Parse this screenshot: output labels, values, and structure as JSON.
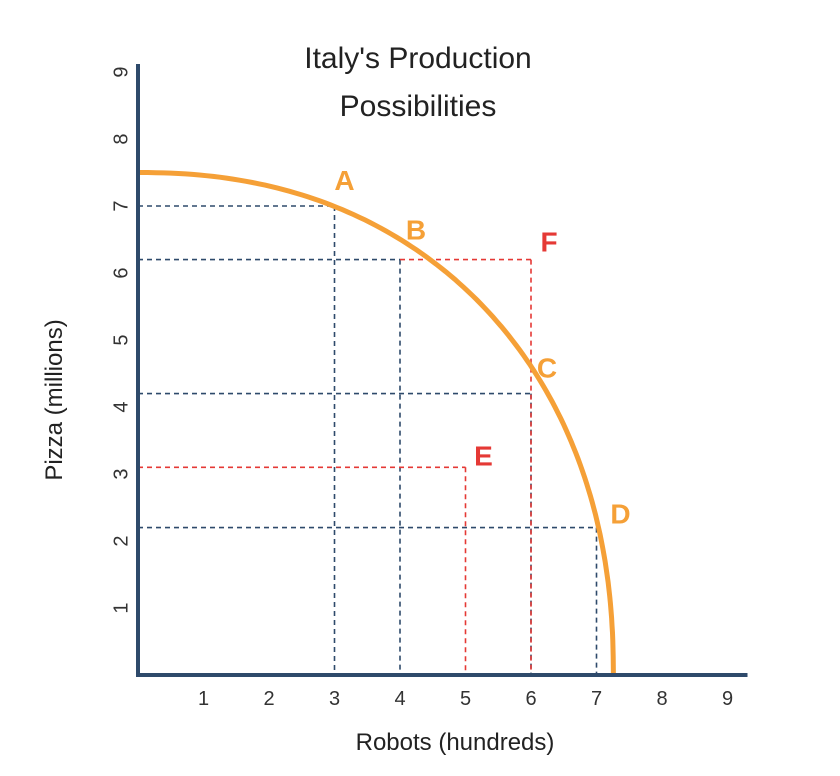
{
  "chart_data": {
    "type": "line",
    "title": [
      "Italy's Production",
      "Possibilities"
    ],
    "xlabel": "Robots (hundreds)",
    "ylabel": "Pizza (millions)",
    "xlim": [
      0,
      9
    ],
    "ylim": [
      0,
      9
    ],
    "xticks": [
      "1",
      "2",
      "3",
      "4",
      "5",
      "6",
      "7",
      "8",
      "9"
    ],
    "yticks": [
      "1",
      "2",
      "3",
      "4",
      "5",
      "6",
      "7",
      "8",
      "9"
    ],
    "ppf_curve": {
      "name": "Production possibilities frontier",
      "intercept_y": 7.5,
      "intercept_x": 7.25,
      "color": "#F5A037"
    },
    "points": [
      {
        "label": "A",
        "x": 3,
        "y": 7.0,
        "on_frontier": true,
        "color": "#F5A037"
      },
      {
        "label": "B",
        "x": 4,
        "y": 6.2,
        "on_frontier": true,
        "color": "#F5A037"
      },
      {
        "label": "C",
        "x": 6,
        "y": 4.2,
        "on_frontier": true,
        "color": "#F5A037"
      },
      {
        "label": "D",
        "x": 7,
        "y": 2.2,
        "on_frontier": true,
        "color": "#F5A037"
      },
      {
        "label": "E",
        "x": 5,
        "y": 3.1,
        "on_frontier": false,
        "color": "#E53935"
      },
      {
        "label": "F",
        "x": 6,
        "y": 6.2,
        "on_frontier": false,
        "color": "#E53935"
      }
    ],
    "colors": {
      "axis": "#2E4A6B",
      "guide_blue": "#2E4A6B",
      "guide_red": "#E53935"
    }
  }
}
